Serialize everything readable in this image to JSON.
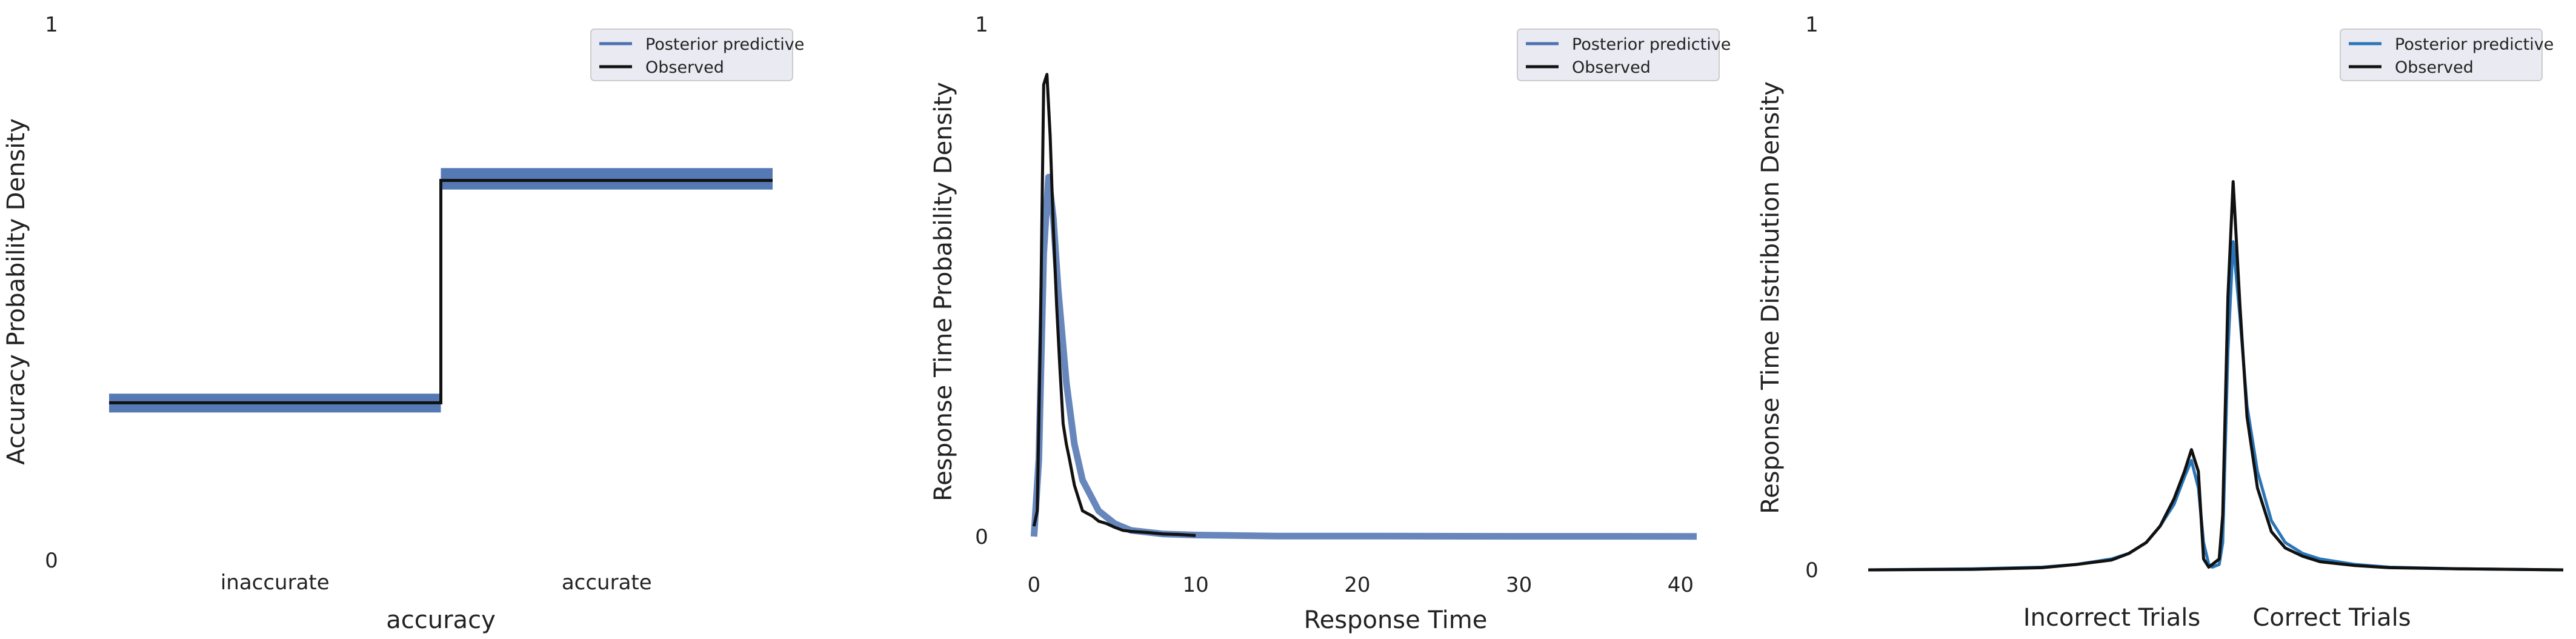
{
  "chart_data": [
    {
      "type": "line",
      "xlabel": "accuracy",
      "ylabel": "Accuracy Probability Density",
      "ylim": [
        0,
        1
      ],
      "yticks": [
        "0",
        "1"
      ],
      "categories": [
        "inaccurate",
        "accurate"
      ],
      "grid": false,
      "legend_position": "top-right",
      "legend": [
        "Posterior predictive",
        "Observed"
      ],
      "series": [
        {
          "name": "Posterior predictive",
          "color": "#4c72b0",
          "band": [
            {
              "category": "inaccurate",
              "low": 0.275,
              "high": 0.31
            },
            {
              "category": "accurate",
              "low": 0.69,
              "high": 0.73
            }
          ]
        },
        {
          "name": "Observed",
          "color": "#111111",
          "values": [
            {
              "category": "inaccurate",
              "value": 0.293
            },
            {
              "category": "accurate",
              "value": 0.707
            }
          ]
        }
      ]
    },
    {
      "type": "line",
      "xlabel": "Response Time",
      "ylabel": "Response Time Probability Density",
      "xlim": [
        -0.5,
        41
      ],
      "ylim": [
        0,
        1
      ],
      "xticks": [
        0,
        10,
        20,
        30,
        40
      ],
      "yticks": [
        "0",
        "1"
      ],
      "grid": false,
      "legend_position": "top-right",
      "legend": [
        "Posterior predictive",
        "Observed"
      ],
      "series": [
        {
          "name": "Posterior predictive",
          "color": "#4c72b0",
          "x": [
            0,
            0.3,
            0.6,
            0.9,
            1.2,
            1.5,
            2,
            2.5,
            3,
            4,
            5,
            6,
            8,
            10,
            15,
            20,
            30,
            41
          ],
          "y": [
            0,
            0.15,
            0.55,
            0.7,
            0.62,
            0.48,
            0.3,
            0.18,
            0.11,
            0.05,
            0.025,
            0.012,
            0.005,
            0.003,
            0.001,
            0.001,
            0.0005,
            0.0003
          ]
        },
        {
          "name": "Observed",
          "color": "#111111",
          "x": [
            0,
            0.2,
            0.4,
            0.6,
            0.8,
            1.0,
            1.2,
            1.4,
            1.6,
            1.8,
            2.0,
            2.2,
            2.5,
            2.8,
            3.0,
            3.3,
            3.6,
            4.0,
            4.5,
            5.0,
            5.5,
            6.0,
            7.0,
            8.0,
            9.0,
            10.0
          ],
          "y": [
            0.02,
            0.05,
            0.4,
            0.88,
            0.9,
            0.78,
            0.6,
            0.45,
            0.33,
            0.22,
            0.18,
            0.15,
            0.1,
            0.07,
            0.05,
            0.045,
            0.04,
            0.03,
            0.025,
            0.018,
            0.012,
            0.01,
            0.008,
            0.005,
            0.004,
            0.002
          ]
        }
      ]
    },
    {
      "type": "line",
      "xlabel": "",
      "ylabel": "Response Time Distribution Density",
      "ylim": [
        0,
        1
      ],
      "yticks": [
        "0",
        "1"
      ],
      "category_labels": [
        "Incorrect Trials",
        "Correct Trials"
      ],
      "grid": false,
      "legend_position": "top-right",
      "legend": [
        "Posterior predictive",
        "Observed"
      ],
      "series": [
        {
          "name": "Posterior predictive",
          "color": "#2a75b8",
          "x": [
            -10,
            -7,
            -5,
            -4,
            -3,
            -2.5,
            -2,
            -1.6,
            -1.2,
            -0.9,
            -0.7,
            -0.5,
            -0.35,
            -0.2,
            -0.1,
            0.1,
            0.2,
            0.35,
            0.5,
            0.7,
            0.9,
            1.2,
            1.6,
            2.0,
            2.5,
            3,
            4,
            5,
            7,
            10
          ],
          "y": [
            0,
            0.002,
            0.005,
            0.01,
            0.02,
            0.03,
            0.05,
            0.08,
            0.12,
            0.17,
            0.2,
            0.15,
            0.05,
            0.01,
            0.005,
            0.01,
            0.05,
            0.4,
            0.6,
            0.46,
            0.3,
            0.18,
            0.09,
            0.05,
            0.03,
            0.02,
            0.01,
            0.005,
            0.002,
            0
          ]
        },
        {
          "name": "Observed",
          "color": "#111111",
          "x": [
            -10,
            -7,
            -5,
            -4,
            -3,
            -2.5,
            -2,
            -1.6,
            -1.2,
            -0.9,
            -0.7,
            -0.5,
            -0.35,
            -0.2,
            -0.1,
            0.1,
            0.2,
            0.35,
            0.5,
            0.7,
            0.9,
            1.2,
            1.6,
            2.0,
            2.5,
            3,
            4,
            5,
            7,
            10
          ],
          "y": [
            0,
            0.001,
            0.004,
            0.01,
            0.018,
            0.03,
            0.05,
            0.08,
            0.13,
            0.18,
            0.22,
            0.18,
            0.02,
            0.005,
            0.01,
            0.02,
            0.1,
            0.5,
            0.71,
            0.48,
            0.28,
            0.15,
            0.07,
            0.04,
            0.025,
            0.015,
            0.008,
            0.004,
            0.002,
            0
          ]
        }
      ]
    }
  ]
}
